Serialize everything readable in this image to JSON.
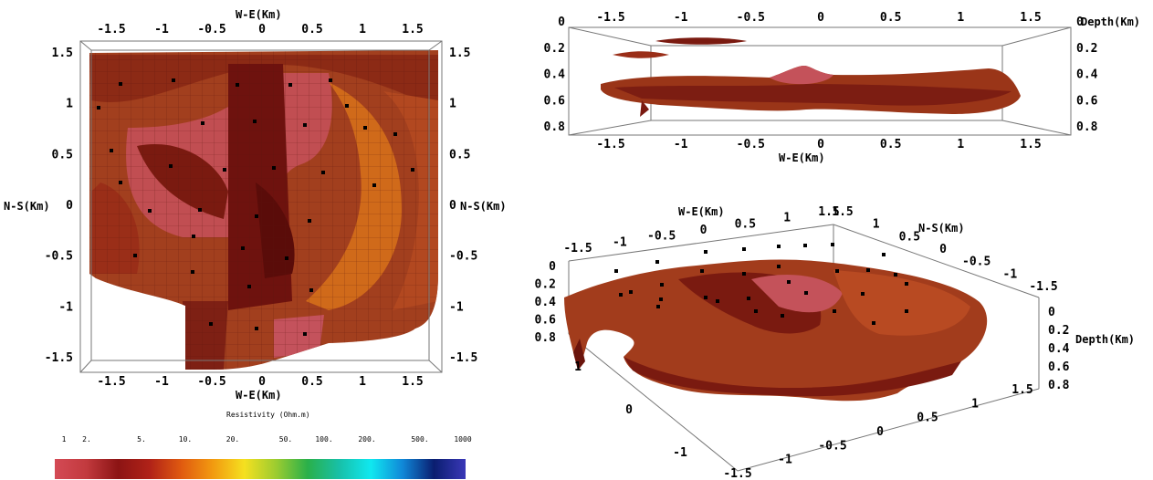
{
  "colors": {
    "surface_dark": "#5e0d0b",
    "surface_mid": "#8e2a16",
    "surface_light": "#b84e28",
    "surface_pink": "#c7525a",
    "surface_orange": "#d96a1a",
    "station": "#000000"
  },
  "plan_view": {
    "x_label_top": "W-E(Km)",
    "x_label_bottom": "W-E(Km)",
    "y_label_left": "N-S(Km)",
    "y_label_right": "N-S(Km)",
    "x_ticks": [
      "-1.5",
      "-1",
      "-0.5",
      "0",
      "0.5",
      "1",
      "1.5"
    ],
    "y_ticks": [
      "1.5",
      "1",
      "0.5",
      "0",
      "-0.5",
      "-1",
      "-1.5"
    ]
  },
  "side_view": {
    "x_label": "W-E(Km)",
    "depth_label": "Depth(Km)",
    "x_ticks": [
      "-1.5",
      "-1",
      "-0.5",
      "0",
      "0.5",
      "1",
      "1.5"
    ],
    "depth_ticks": [
      "0",
      "0.2",
      "0.4",
      "0.6",
      "0.8"
    ]
  },
  "perspective_view": {
    "we_label": "W-E(Km)",
    "ns_label": "N-S(Km)",
    "depth_label": "Depth(Km)",
    "we_ticks_top": [
      "-1.5",
      "-1",
      "-0.5",
      "0",
      "0.5",
      "1",
      "1.5"
    ],
    "ns_ticks_top": [
      "1.5",
      "1",
      "0.5",
      "0",
      "-0.5",
      "-1",
      "-1.5"
    ],
    "depth_ticks_left": [
      "0",
      "0.2",
      "0.4",
      "0.6",
      "0.8"
    ],
    "depth_ticks_right": [
      "0",
      "0.2",
      "0.4",
      "0.6",
      "0.8"
    ],
    "ns_ticks_bottom_left": [
      "1",
      "0",
      "-1"
    ],
    "we_ticks_bottom": [
      "1.5",
      "1",
      "0.5",
      "0",
      "-0.5",
      "-1",
      "-1.5"
    ]
  },
  "colorbar": {
    "title": "Resistivity (Ohm.m)",
    "ticks": [
      "1",
      "2.",
      "5.",
      "10.",
      "20.",
      "50.",
      "100.",
      "200.",
      "500.",
      "1000"
    ],
    "gradient": [
      "#d44a55",
      "#c23a3e",
      "#8c1414",
      "#b02218",
      "#e05a10",
      "#f29a10",
      "#f5e020",
      "#9ccc30",
      "#2ab04a",
      "#18c0a8",
      "#10e8f0",
      "#1088d8",
      "#0a1e70",
      "#3a38b8"
    ]
  }
}
